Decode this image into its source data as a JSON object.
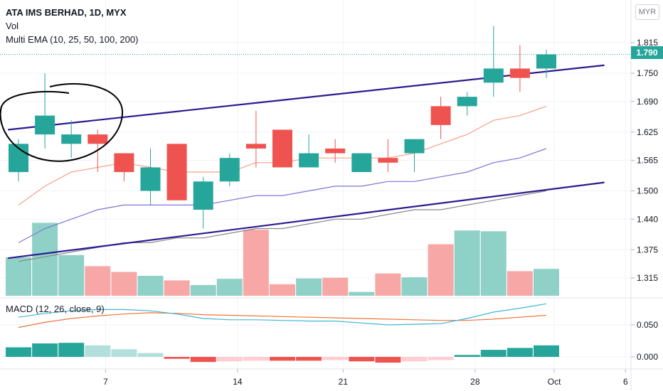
{
  "legend": {
    "symbol_line": "ATA IMS BERHAD, 1D, MYX",
    "vol_label": "Vol",
    "ema_label": "Multi EMA (10, 25, 50, 100, 200)"
  },
  "macd_legend": "MACD (12, 26, close, 9)",
  "currency_button": "MYR",
  "last_price": "1.790",
  "colors": {
    "up": "#26a69a",
    "down": "#ef5350",
    "up_volume": "#8fd1c7",
    "down_volume": "#f6a7a6",
    "trendline": "#2c1a8f",
    "ema_short": "#f6a088",
    "ema_mid": "#7b74d6",
    "ema_long": "#888888",
    "macd_line": "#3fb5d6",
    "signal_line": "#f0743a"
  },
  "chart_data": {
    "type": "candlestick",
    "price_axis": {
      "ticks": [
        "1.815",
        "1.750",
        "1.690",
        "1.625",
        "1.565",
        "1.500",
        "1.440",
        "1.375",
        "1.315"
      ]
    },
    "macd_axis": {
      "ticks": [
        "0.050",
        "0.000"
      ]
    },
    "x_axis": {
      "ticks": [
        "7",
        "14",
        "21",
        "28",
        "Oct",
        "6"
      ]
    },
    "candles": [
      {
        "open": 1.54,
        "high": 1.61,
        "low": 1.52,
        "close": 1.6,
        "volume": 1.0
      },
      {
        "open": 1.62,
        "high": 1.75,
        "low": 1.59,
        "close": 1.66,
        "volume": 1.9
      },
      {
        "open": 1.6,
        "high": 1.65,
        "low": 1.57,
        "close": 1.62,
        "volume": 1.06
      },
      {
        "open": 1.62,
        "high": 1.63,
        "low": 1.54,
        "close": 1.6,
        "volume": 0.77
      },
      {
        "open": 1.58,
        "high": 1.58,
        "low": 1.52,
        "close": 1.54,
        "volume": 0.62
      },
      {
        "open": 1.5,
        "high": 1.59,
        "low": 1.47,
        "close": 1.55,
        "volume": 0.52
      },
      {
        "open": 1.6,
        "high": 1.6,
        "low": 1.48,
        "close": 1.48,
        "volume": 0.4
      },
      {
        "open": 1.46,
        "high": 1.53,
        "low": 1.42,
        "close": 1.52,
        "volume": 0.28
      },
      {
        "open": 1.52,
        "high": 1.58,
        "low": 1.51,
        "close": 1.57,
        "volume": 0.44
      },
      {
        "open": 1.6,
        "high": 1.67,
        "low": 1.55,
        "close": 1.59,
        "volume": 1.72
      },
      {
        "open": 1.63,
        "high": 1.63,
        "low": 1.55,
        "close": 1.55,
        "volume": 0.3
      },
      {
        "open": 1.55,
        "high": 1.62,
        "low": 1.55,
        "close": 1.58,
        "volume": 0.45
      },
      {
        "open": 1.59,
        "high": 1.61,
        "low": 1.56,
        "close": 1.58,
        "volume": 0.47
      },
      {
        "open": 1.54,
        "high": 1.58,
        "low": 1.54,
        "close": 1.58,
        "volume": 0.1
      },
      {
        "open": 1.57,
        "high": 1.61,
        "low": 1.54,
        "close": 1.56,
        "volume": 0.58
      },
      {
        "open": 1.58,
        "high": 1.61,
        "low": 1.54,
        "close": 1.61,
        "volume": 0.48
      },
      {
        "open": 1.68,
        "high": 1.7,
        "low": 1.61,
        "close": 1.64,
        "volume": 1.34
      },
      {
        "open": 1.68,
        "high": 1.71,
        "low": 1.66,
        "close": 1.7,
        "volume": 1.7
      },
      {
        "open": 1.73,
        "high": 1.85,
        "low": 1.7,
        "close": 1.76,
        "volume": 1.68
      },
      {
        "open": 1.76,
        "high": 1.81,
        "low": 1.71,
        "close": 1.74,
        "volume": 0.64
      },
      {
        "open": 1.76,
        "high": 1.8,
        "low": 1.74,
        "close": 1.79,
        "volume": 0.7
      }
    ],
    "ema_short": [
      1.47,
      1.51,
      1.54,
      1.55,
      1.56,
      1.55,
      1.54,
      1.54,
      1.54,
      1.56,
      1.56,
      1.57,
      1.57,
      1.57,
      1.57,
      1.58,
      1.6,
      1.62,
      1.65,
      1.66,
      1.68
    ],
    "ema_mid": [
      1.39,
      1.42,
      1.44,
      1.46,
      1.47,
      1.47,
      1.47,
      1.47,
      1.48,
      1.49,
      1.49,
      1.5,
      1.51,
      1.51,
      1.52,
      1.52,
      1.53,
      1.54,
      1.56,
      1.57,
      1.59
    ],
    "ema_long": [
      1.35,
      1.36,
      1.37,
      1.38,
      1.39,
      1.39,
      1.4,
      1.4,
      1.41,
      1.42,
      1.42,
      1.43,
      1.44,
      1.44,
      1.45,
      1.46,
      1.46,
      1.47,
      1.48,
      1.49,
      1.5
    ],
    "trendlines": [
      {
        "x": [
          -0.4,
          22.2
        ],
        "y": [
          1.63,
          1.767
        ]
      },
      {
        "x": [
          -0.4,
          22.2
        ],
        "y": [
          1.357,
          1.518
        ]
      }
    ],
    "macd": [
      0.062,
      0.068,
      0.072,
      0.074,
      0.074,
      0.072,
      0.067,
      0.06,
      0.058,
      0.058,
      0.057,
      0.056,
      0.056,
      0.053,
      0.05,
      0.051,
      0.052,
      0.06,
      0.07,
      0.076,
      0.083
    ],
    "signal": [
      0.046,
      0.054,
      0.06,
      0.064,
      0.067,
      0.069,
      0.068,
      0.066,
      0.065,
      0.064,
      0.063,
      0.062,
      0.061,
      0.06,
      0.059,
      0.058,
      0.057,
      0.057,
      0.059,
      0.062,
      0.065
    ],
    "histogram": [
      0.015,
      0.021,
      0.022,
      0.018,
      0.012,
      0.006,
      -0.003,
      -0.008,
      -0.007,
      -0.006,
      -0.006,
      -0.006,
      -0.005,
      -0.007,
      -0.009,
      -0.007,
      -0.005,
      0.003,
      0.011,
      0.014,
      0.018
    ]
  }
}
